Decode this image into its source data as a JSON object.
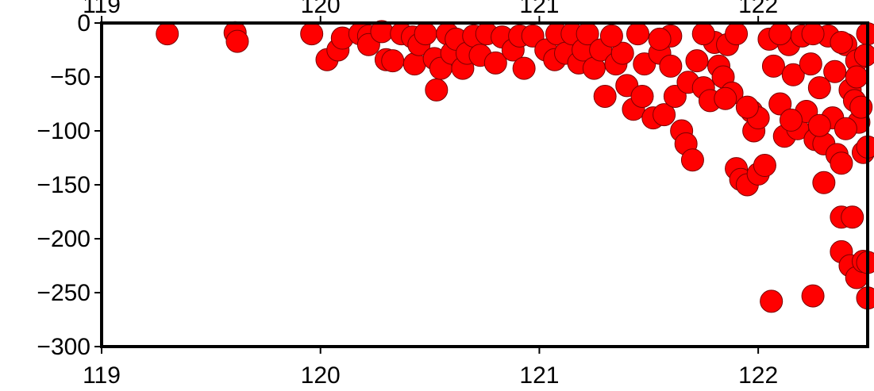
{
  "chart_data": {
    "type": "scatter",
    "title": "",
    "xlabel": "",
    "ylabel": "",
    "xlim": [
      119,
      122.5
    ],
    "ylim": [
      -300,
      0
    ],
    "x_ticks": [
      "119",
      "120",
      "121",
      "122"
    ],
    "x_tick_values": [
      119,
      120,
      121,
      122
    ],
    "y_ticks": [
      "0",
      "−50",
      "−100",
      "−150",
      "−200",
      "−250",
      "−300"
    ],
    "y_tick_values": [
      0,
      -50,
      -100,
      -150,
      -200,
      -250,
      -300
    ],
    "top_axis_tick_labels": true,
    "grid": false,
    "legend": "none",
    "marker": {
      "shape": "circle",
      "fill": "#ff0000",
      "stroke": "#7a0000"
    },
    "series": [
      {
        "values": [
          [
            119.3,
            -10
          ],
          [
            119.61,
            -9
          ],
          [
            119.62,
            -17
          ],
          [
            119.96,
            -10
          ],
          [
            120.03,
            -34
          ],
          [
            120.08,
            -25
          ],
          [
            120.1,
            -14
          ],
          [
            120.18,
            -10
          ],
          [
            120.22,
            -12
          ],
          [
            120.22,
            -20
          ],
          [
            120.28,
            -8
          ],
          [
            120.3,
            -34
          ],
          [
            120.33,
            -35
          ],
          [
            120.37,
            -10
          ],
          [
            120.42,
            -13
          ],
          [
            120.43,
            -38
          ],
          [
            120.45,
            -20
          ],
          [
            120.48,
            -10
          ],
          [
            120.52,
            -33
          ],
          [
            120.53,
            -62
          ],
          [
            120.55,
            -42
          ],
          [
            120.58,
            -10
          ],
          [
            120.6,
            -28
          ],
          [
            120.62,
            -15
          ],
          [
            120.65,
            -42
          ],
          [
            120.67,
            -28
          ],
          [
            120.7,
            -12
          ],
          [
            120.73,
            -30
          ],
          [
            120.76,
            -10
          ],
          [
            120.8,
            -37
          ],
          [
            120.83,
            -13
          ],
          [
            120.88,
            -25
          ],
          [
            120.91,
            -12
          ],
          [
            120.93,
            -42
          ],
          [
            120.97,
            -12
          ],
          [
            121.03,
            -25
          ],
          [
            121.07,
            -34
          ],
          [
            121.08,
            -10
          ],
          [
            121.12,
            -28
          ],
          [
            121.15,
            -10
          ],
          [
            121.18,
            -37
          ],
          [
            121.2,
            -25
          ],
          [
            121.22,
            -10
          ],
          [
            121.25,
            -42
          ],
          [
            121.28,
            -25
          ],
          [
            121.3,
            -68
          ],
          [
            121.35,
            -38
          ],
          [
            121.38,
            -28
          ],
          [
            121.4,
            -58
          ],
          [
            121.43,
            -80
          ],
          [
            121.45,
            -10
          ],
          [
            121.47,
            -68
          ],
          [
            121.48,
            -38
          ],
          [
            121.52,
            -88
          ],
          [
            121.55,
            -28
          ],
          [
            121.57,
            -85
          ],
          [
            121.6,
            -12
          ],
          [
            121.62,
            -68
          ],
          [
            121.65,
            -100
          ],
          [
            121.67,
            -112
          ],
          [
            121.7,
            -127
          ],
          [
            121.6,
            -40
          ],
          [
            121.68,
            -55
          ],
          [
            121.72,
            -35
          ],
          [
            121.75,
            -60
          ],
          [
            121.78,
            -72
          ],
          [
            121.8,
            -18
          ],
          [
            121.82,
            -40
          ],
          [
            121.84,
            -50
          ],
          [
            121.86,
            -20
          ],
          [
            121.88,
            -65
          ],
          [
            121.9,
            -135
          ],
          [
            121.92,
            -145
          ],
          [
            121.95,
            -150
          ],
          [
            121.97,
            -82
          ],
          [
            121.98,
            -100
          ],
          [
            122.0,
            -88
          ],
          [
            122.0,
            -140
          ],
          [
            122.03,
            -132
          ],
          [
            122.05,
            -15
          ],
          [
            122.07,
            -40
          ],
          [
            122.1,
            -75
          ],
          [
            122.12,
            -105
          ],
          [
            122.14,
            -20
          ],
          [
            122.16,
            -48
          ],
          [
            122.18,
            -98
          ],
          [
            122.2,
            -12
          ],
          [
            122.22,
            -82
          ],
          [
            122.24,
            -38
          ],
          [
            122.26,
            -108
          ],
          [
            122.28,
            -60
          ],
          [
            122.3,
            -112
          ],
          [
            122.32,
            -12
          ],
          [
            122.34,
            -88
          ],
          [
            122.35,
            -45
          ],
          [
            122.36,
            -122
          ],
          [
            122.38,
            -130
          ],
          [
            122.4,
            -20
          ],
          [
            122.42,
            -62
          ],
          [
            122.44,
            -72
          ],
          [
            122.45,
            -35
          ],
          [
            122.46,
            -92
          ],
          [
            122.48,
            -120
          ],
          [
            122.5,
            -10
          ],
          [
            122.1,
            -10
          ],
          [
            122.25,
            -10
          ],
          [
            122.38,
            -18
          ],
          [
            121.9,
            -10
          ],
          [
            121.75,
            -10
          ],
          [
            121.55,
            -15
          ],
          [
            121.33,
            -12
          ],
          [
            122.45,
            -50
          ],
          [
            122.47,
            -78
          ],
          [
            122.49,
            -30
          ],
          [
            122.38,
            -180
          ],
          [
            122.43,
            -180
          ],
          [
            122.38,
            -212
          ],
          [
            122.42,
            -225
          ],
          [
            122.45,
            -236
          ],
          [
            122.48,
            -221
          ],
          [
            122.53,
            -222
          ],
          [
            122.06,
            -258
          ],
          [
            122.25,
            -253
          ],
          [
            122.55,
            -255
          ],
          [
            122.3,
            -148
          ],
          [
            121.85,
            -70
          ],
          [
            121.95,
            -78
          ],
          [
            122.15,
            -90
          ],
          [
            122.28,
            -95
          ],
          [
            122.4,
            -98
          ],
          [
            122.5,
            -115
          ]
        ]
      }
    ]
  }
}
